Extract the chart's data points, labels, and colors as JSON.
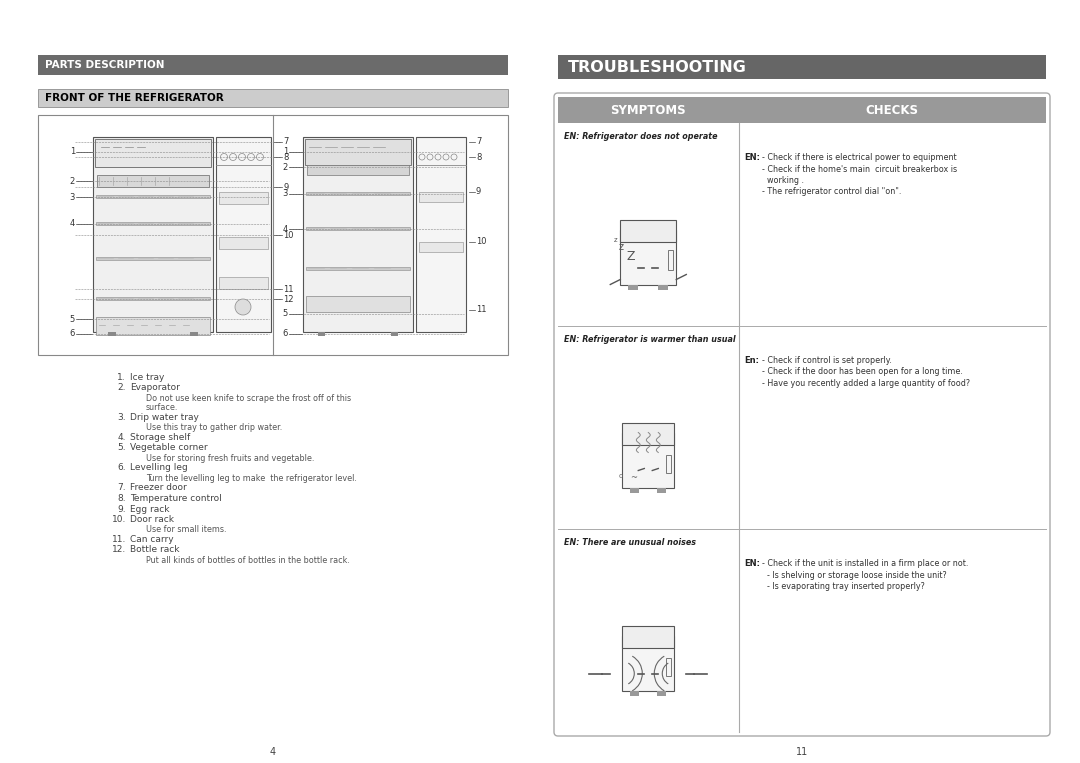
{
  "page_bg": "#ffffff",
  "left_title_bg": "#6b6b6b",
  "left_title_text": "PARTS DESCRIPTION",
  "left_title_color": "#ffffff",
  "left_subtitle_bg": "#cccccc",
  "left_subtitle_text": "FRONT OF THE REFRIGERATOR",
  "left_subtitle_color": "#000000",
  "right_title_bg": "#666666",
  "right_title_text": "TROUBLESHOOTING",
  "right_title_color": "#ffffff",
  "symptoms_header": "SYMPTOMS",
  "checks_header": "CHECKS",
  "header_bg": "#999999",
  "header_text_color": "#ffffff",
  "table_border_color": "#aaaaaa",
  "row1_symptom_label": "EN: Refrigerator does not operate",
  "row1_checks_label": "EN:",
  "row1_checks_text1": "- Check if there is electrical power to equipment",
  "row1_checks_text2": "- Check if the home's main  circuit breakerbox is",
  "row1_checks_text3": "  working .",
  "row1_checks_text4": "- The refrigerator control dial \"on\".",
  "row2_symptom_label": "EN: Refrigerator is warmer than usual",
  "row2_checks_label": "En:",
  "row2_checks_text1": "- Check if control is set properly.",
  "row2_checks_text2": "- Check if the door has been open for a long time.",
  "row2_checks_text3": "- Have you recently added a large quantity of food?",
  "row3_symptom_label": "EN: There are unusual noises",
  "row3_checks_label": "EN:",
  "row3_checks_text1": "- Check if the unit is installed in a firm place or not.",
  "row3_checks_text2": "  - Is shelving or storage loose inside the unit?",
  "row3_checks_text3": "  - Is evaporating tray inserted properly?",
  "parts_list": [
    {
      "num": "1.",
      "text": "Ice tray",
      "sub": ""
    },
    {
      "num": "2.",
      "text": "Evaporator",
      "sub": "Do not use keen knife to scrape the frost off of this\nsurface."
    },
    {
      "num": "3.",
      "text": "Drip water tray",
      "sub": "Use this tray to gather drip water."
    },
    {
      "num": "4.",
      "text": "Storage shelf",
      "sub": ""
    },
    {
      "num": "5.",
      "text": "Vegetable corner",
      "sub": "Use for storing fresh fruits and vegetable."
    },
    {
      "num": "6.",
      "text": "Levelling leg",
      "sub": "Turn the levelling leg to make  the refrigerator level."
    },
    {
      "num": "7.",
      "text": "Freezer door",
      "sub": ""
    },
    {
      "num": "8.",
      "text": "Temperature control",
      "sub": ""
    },
    {
      "num": "9.",
      "text": "Egg rack",
      "sub": ""
    },
    {
      "num": "10.",
      "text": "Door rack",
      "sub": "Use for small items."
    },
    {
      "num": "11.",
      "text": "Can carry",
      "sub": ""
    },
    {
      "num": "12.",
      "text": "Bottle rack",
      "sub": "Put all kinds of bottles of bottles in the bottle rack."
    }
  ],
  "page_num_left": "4",
  "page_num_right": "11"
}
